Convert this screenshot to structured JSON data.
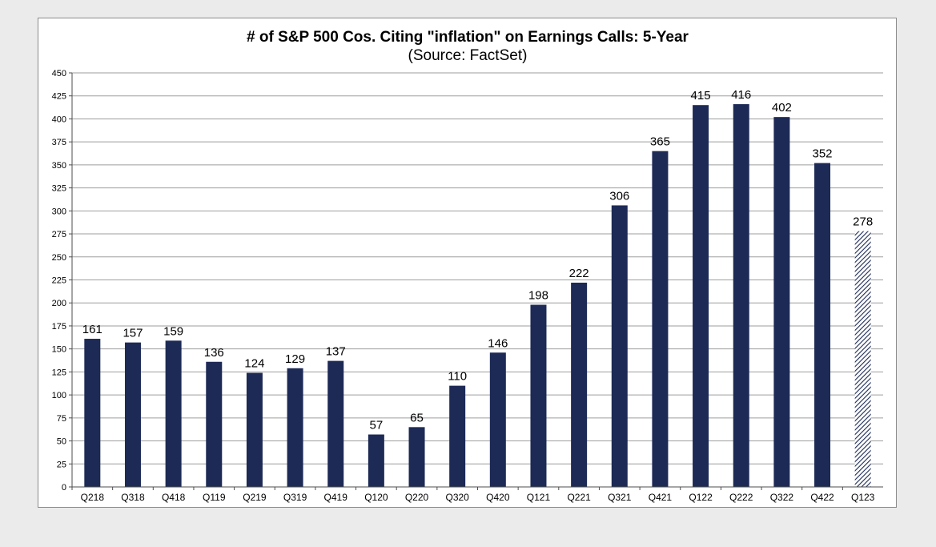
{
  "chart_data": {
    "type": "bar",
    "title": "# of S&P 500 Cos. Citing \"inflation\" on Earnings Calls: 5-Year",
    "subtitle": "(Source: FactSet)",
    "xlabel": "",
    "ylabel": "",
    "ylim": [
      0,
      450
    ],
    "ytick_step": 25,
    "grid": true,
    "categories": [
      "Q218",
      "Q318",
      "Q418",
      "Q119",
      "Q219",
      "Q319",
      "Q419",
      "Q120",
      "Q220",
      "Q320",
      "Q420",
      "Q121",
      "Q221",
      "Q321",
      "Q421",
      "Q122",
      "Q222",
      "Q322",
      "Q422",
      "Q123"
    ],
    "values": [
      161,
      157,
      159,
      136,
      124,
      129,
      137,
      57,
      65,
      110,
      146,
      198,
      222,
      306,
      365,
      415,
      416,
      402,
      352,
      278
    ],
    "hatched_categories": [
      "Q123"
    ],
    "colors": {
      "bar": "#1d2a56",
      "hatch": "#1d2a56",
      "grid": "#9e9e9e",
      "axis": "#4d4d4d"
    }
  }
}
